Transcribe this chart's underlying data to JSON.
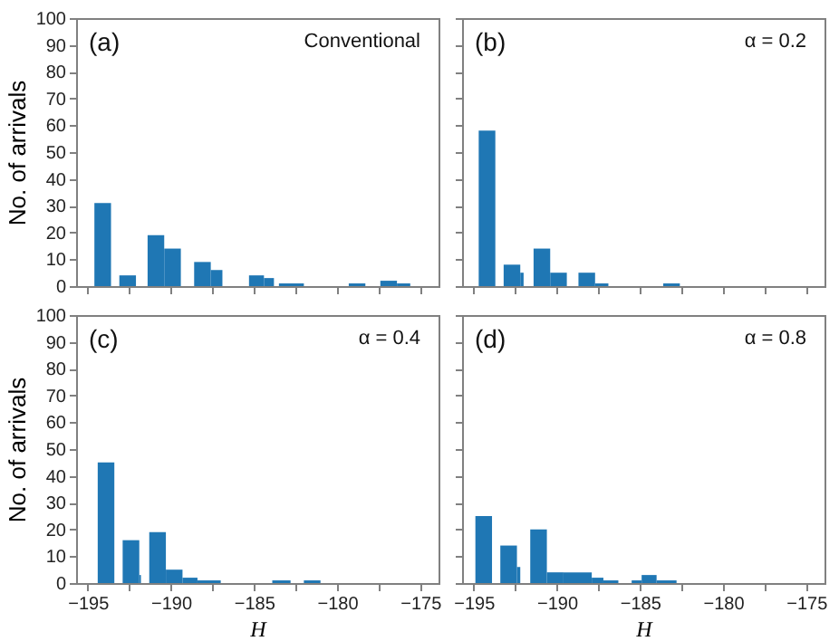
{
  "chart_data": [
    {
      "type": "histogram",
      "annotations": [
        "(a)",
        "Conventional"
      ],
      "ylabel": "No. of arrivals",
      "color": "#1f77b4",
      "tick_labels": "y",
      "bins": [
        -194.6,
        -193.6,
        -193.1,
        -192.1,
        -191.4,
        -190.4,
        -189.4,
        -188.6,
        -187.6,
        -186.9,
        -185.3,
        -184.4,
        -183.8,
        -183.5,
        -182.0,
        -179.3,
        -178.3,
        -177.4,
        -176.4,
        -175.6
      ],
      "values": [
        31,
        0,
        4,
        0,
        19,
        14,
        0,
        9,
        6,
        0,
        4,
        3,
        0,
        1,
        0,
        1,
        0,
        2,
        1
      ],
      "xlim": [
        -195.7,
        -173.9
      ],
      "xticks": [
        -195,
        -192.5,
        -190,
        -187.5,
        -185,
        -182.5,
        -180,
        -177.5,
        -175
      ],
      "ylim": [
        0,
        100
      ],
      "yticks": [
        0,
        10,
        20,
        30,
        40,
        50,
        60,
        70,
        80,
        90,
        100
      ]
    },
    {
      "type": "histogram",
      "annotations": [
        "(b)",
        "α = 0.2"
      ],
      "color": "#1f77b4",
      "tick_labels": false,
      "bins": [
        -194.7,
        -193.7,
        -193.2,
        -192.2,
        -192.0,
        -191.4,
        -190.4,
        -189.4,
        -188.7,
        -187.7,
        -186.9,
        -183.6,
        -182.6
      ],
      "values": [
        58,
        0,
        8,
        5,
        0,
        14,
        5,
        0,
        5,
        1,
        0,
        1
      ],
      "xlim": [
        -195.7,
        -173.9
      ],
      "xticks": [
        -195,
        -192.5,
        -190,
        -187.5,
        -185,
        -182.5,
        -180,
        -177.5,
        -175
      ],
      "ylim": [
        0,
        100
      ],
      "yticks": [
        0,
        10,
        20,
        30,
        40,
        50,
        60,
        70,
        80,
        90,
        100
      ]
    },
    {
      "type": "histogram",
      "annotations": [
        "(c)",
        "α = 0.4"
      ],
      "ylabel": "No. of arrivals",
      "xlabel": "H",
      "color": "#1f77b4",
      "bins": [
        -194.4,
        -193.4,
        -192.9,
        -191.9,
        -191.8,
        -191.3,
        -190.3,
        -189.3,
        -188.4,
        -187.0,
        -183.9,
        -182.8,
        -182.0,
        -181.0
      ],
      "values": [
        45,
        0,
        16,
        3,
        0,
        19,
        5,
        2,
        1,
        0,
        1,
        0,
        1
      ],
      "xlim": [
        -195.7,
        -173.9
      ],
      "xticks": [
        {
          "value": -195,
          "label": "−195"
        },
        {
          "value": -192.5,
          "label": null
        },
        {
          "value": -190,
          "label": "−190"
        },
        {
          "value": -187.5,
          "label": null
        },
        {
          "value": -185,
          "label": "−185"
        },
        {
          "value": -182.5,
          "label": null
        },
        {
          "value": -180,
          "label": "−180"
        },
        {
          "value": -177.5,
          "label": null
        },
        {
          "value": -175,
          "label": "−175"
        }
      ],
      "ylim": [
        0,
        100
      ],
      "yticks": [
        0,
        10,
        20,
        30,
        40,
        50,
        60,
        70,
        80,
        90,
        100
      ]
    },
    {
      "type": "histogram",
      "annotations": [
        "(d)",
        "α = 0.8"
      ],
      "xlabel": "H",
      "color": "#1f77b4",
      "tick_labels": "x",
      "bins": [
        -194.9,
        -193.9,
        -193.4,
        -192.4,
        -192.2,
        -191.6,
        -190.6,
        -189.6,
        -187.9,
        -187.2,
        -186.3,
        -185.5,
        -184.9,
        -184.0,
        -182.8
      ],
      "values": [
        25,
        0,
        14,
        6,
        0,
        20,
        4,
        4,
        2,
        1,
        0,
        1,
        3,
        1
      ],
      "xlim": [
        -195.7,
        -173.9
      ],
      "xticks": [
        {
          "value": -195,
          "label": "−195"
        },
        {
          "value": -192.5,
          "label": null
        },
        {
          "value": -190,
          "label": "−190"
        },
        {
          "value": -187.5,
          "label": null
        },
        {
          "value": -185,
          "label": "−185"
        },
        {
          "value": -182.5,
          "label": null
        },
        {
          "value": -180,
          "label": "−180"
        },
        {
          "value": -177.5,
          "label": null
        },
        {
          "value": -175,
          "label": "−175"
        }
      ],
      "ylim": [
        0,
        100
      ],
      "yticks": [
        0,
        10,
        20,
        30,
        40,
        50,
        60,
        70,
        80,
        90,
        100
      ]
    }
  ]
}
